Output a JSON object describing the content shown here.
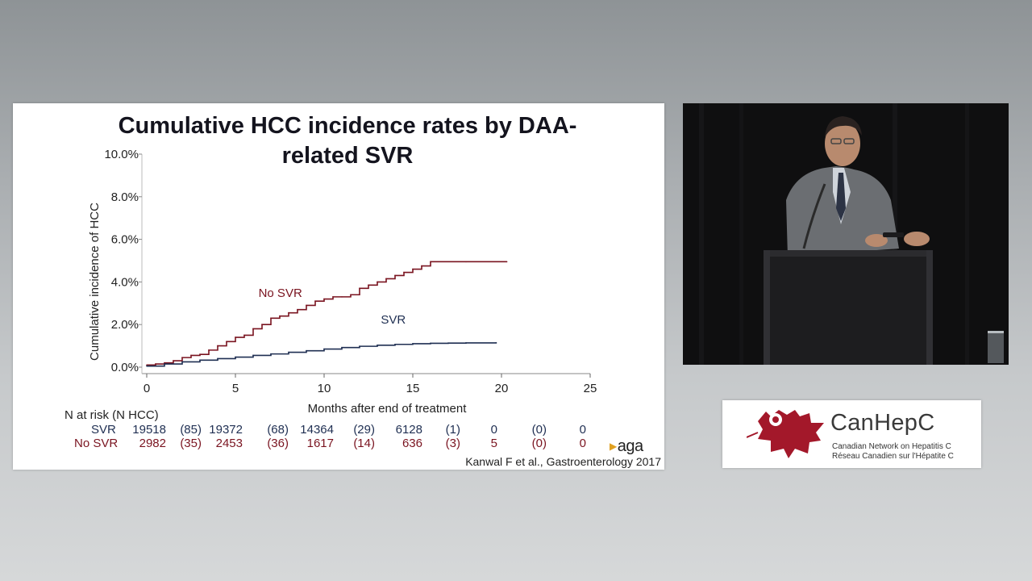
{
  "slide": {
    "title_line1": "Cumulative HCC incidence rates by DAA-",
    "title_line2": "related SVR",
    "citation": "Kanwal F et al., Gastroenterology 2017",
    "publisher_logo_text": "aga"
  },
  "chart_data": {
    "type": "line",
    "title": "Cumulative HCC incidence rates by DAA-related SVR",
    "xlabel": "Months after end of treatment",
    "ylabel": "Cumulative incidence of HCC",
    "xlim": [
      0,
      25
    ],
    "ylim": [
      0,
      10
    ],
    "x_ticks": [
      "0",
      "5",
      "10",
      "15",
      "20",
      "25"
    ],
    "y_ticks": [
      "0.0%",
      "2.0%",
      "4.0%",
      "6.0%",
      "8.0%",
      "10.0%"
    ],
    "grid": false,
    "colors": {
      "svr": "#1f2f52",
      "no_svr": "#7a1420"
    },
    "series": [
      {
        "name": "No SVR",
        "label": "No SVR",
        "x": [
          0,
          0.5,
          1,
          1.5,
          2,
          2.5,
          3,
          3.5,
          4,
          4.5,
          5,
          5.5,
          6,
          6.5,
          7,
          7.5,
          8,
          8.5,
          9,
          9.5,
          10,
          10.5,
          11,
          11.5,
          12,
          12.5,
          13,
          13.5,
          14,
          14.5,
          15,
          15.5,
          16,
          18,
          20.3
        ],
        "values": [
          0.1,
          0.15,
          0.2,
          0.3,
          0.45,
          0.55,
          0.6,
          0.8,
          1.0,
          1.2,
          1.4,
          1.5,
          1.8,
          2.0,
          2.3,
          2.4,
          2.55,
          2.7,
          2.9,
          3.1,
          3.2,
          3.3,
          3.3,
          3.4,
          3.7,
          3.85,
          4.0,
          4.15,
          4.3,
          4.45,
          4.6,
          4.75,
          4.95,
          4.95,
          4.95
        ]
      },
      {
        "name": "SVR",
        "label": "SVR",
        "x": [
          0,
          1,
          2,
          3,
          4,
          5,
          6,
          7,
          8,
          9,
          10,
          11,
          12,
          13,
          14,
          15,
          16,
          17,
          18,
          19.7
        ],
        "values": [
          0.05,
          0.15,
          0.25,
          0.33,
          0.4,
          0.47,
          0.55,
          0.62,
          0.7,
          0.77,
          0.85,
          0.92,
          0.98,
          1.03,
          1.07,
          1.1,
          1.12,
          1.13,
          1.14,
          1.15
        ]
      }
    ]
  },
  "risk_table": {
    "header": "N at risk (N HCC)",
    "rows": [
      {
        "label": "SVR",
        "cells": [
          "19518",
          "(85)",
          "19372",
          "(68)",
          "14364",
          "(29)",
          "6128",
          "(1)",
          "0",
          "(0)",
          "0"
        ]
      },
      {
        "label": "No SVR",
        "cells": [
          "2982",
          "(35)",
          "2453",
          "(36)",
          "1617",
          "(14)",
          "636",
          "(3)",
          "5",
          "(0)",
          "0"
        ]
      }
    ]
  },
  "logo": {
    "name": "CanHepC",
    "line_en": "Canadian Network on Hepatitis C",
    "line_fr": "Réseau Canadien sur l'Hépatite C",
    "color": "#a3182a"
  },
  "video": {
    "description_icon": "speaker-at-podium"
  }
}
